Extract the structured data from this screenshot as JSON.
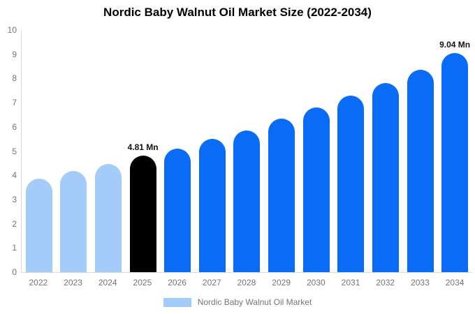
{
  "title": "Nordic Baby Walnut Oil Market Size (2022-2034)",
  "chart_data": {
    "type": "bar",
    "title": "Nordic Baby Walnut Oil Market Size (2022-2034)",
    "unit": "Mn",
    "categories": [
      "2022",
      "2023",
      "2024",
      "2025",
      "2026",
      "2027",
      "2028",
      "2029",
      "2030",
      "2031",
      "2032",
      "2033",
      "2034"
    ],
    "values": [
      3.86,
      4.18,
      4.48,
      4.81,
      5.1,
      5.5,
      5.85,
      6.35,
      6.8,
      7.3,
      7.8,
      8.35,
      9.04
    ],
    "bar_colors": [
      "#a4ccfa",
      "#a4ccfa",
      "#a4ccfa",
      "#000000",
      "#0a6cf6",
      "#0a6cf6",
      "#0a6cf6",
      "#0a6cf6",
      "#0a6cf6",
      "#0a6cf6",
      "#0a6cf6",
      "#0a6cf6",
      "#0a6cf6"
    ],
    "xlabel": "",
    "ylabel": "",
    "ylim": [
      0,
      10
    ],
    "ytick_step": 1,
    "grid": false,
    "annotations": [
      {
        "category": "2025",
        "text": "4.81 Mn"
      },
      {
        "category": "2034",
        "text": "9.04 Mn"
      }
    ],
    "legend": {
      "position": "bottom",
      "label": "Nordic Baby Walnut Oil Market",
      "swatch_color": "#a4ccfa"
    }
  },
  "colors": {
    "historical_bar": "#a4ccfa",
    "base_year_bar": "#000000",
    "forecast_bar": "#0a6cf6",
    "axis_text": "#757575",
    "axis_line": "#d9d9d9",
    "title_text": "#000000",
    "annotation_text": "#111111",
    "background": "#ffffff"
  }
}
